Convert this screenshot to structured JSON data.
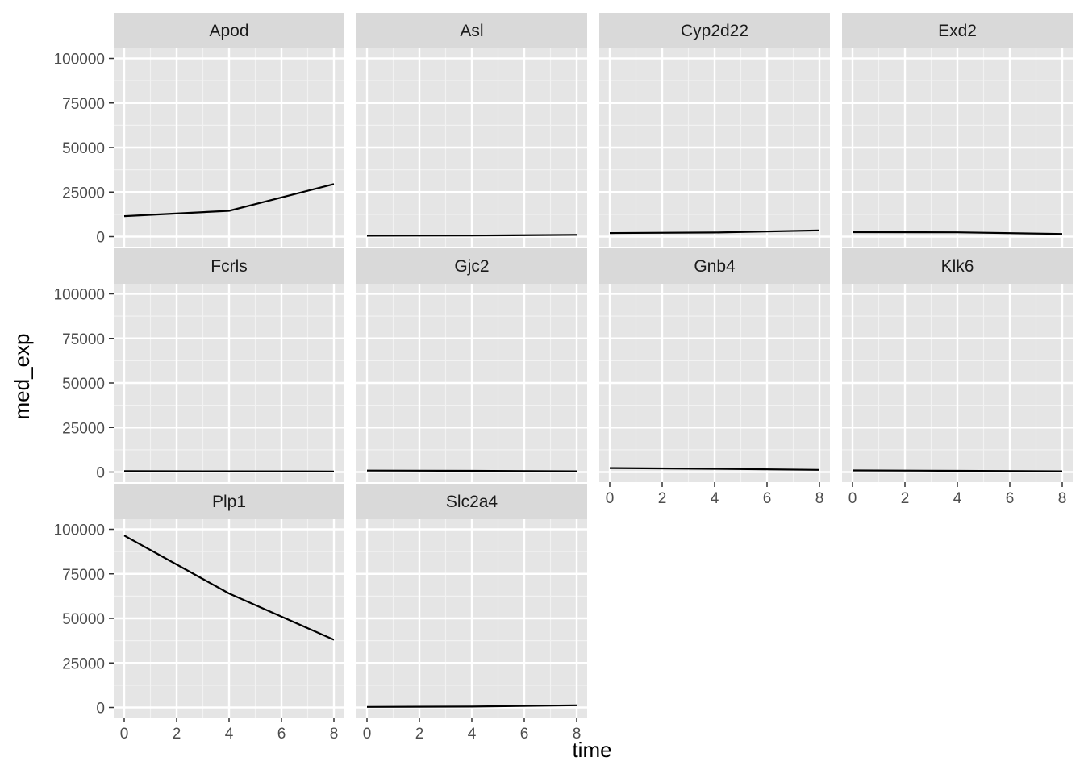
{
  "chart_data": {
    "type": "line",
    "facet_layout": "4 columns x 3 rows",
    "xlabel": "time",
    "ylabel": "med_exp",
    "xlim": [
      0,
      8
    ],
    "ylim": [
      0,
      100000
    ],
    "x_ticks": [
      "0",
      "2",
      "4",
      "6",
      "8"
    ],
    "y_ticks": [
      "0",
      "25000",
      "50000",
      "75000",
      "100000"
    ],
    "grid": true,
    "panel_background": "#e5e5e5",
    "strip_background": "#d9d9d9",
    "line_color": "#000000",
    "series": [
      {
        "name": "Apod",
        "x": [
          0,
          4,
          8
        ],
        "values": [
          11500,
          14500,
          29500
        ]
      },
      {
        "name": "Asl",
        "x": [
          0,
          4,
          8
        ],
        "values": [
          500,
          600,
          1000
        ]
      },
      {
        "name": "Cyp2d22",
        "x": [
          0,
          4,
          8
        ],
        "values": [
          2000,
          2300,
          3500
        ]
      },
      {
        "name": "Exd2",
        "x": [
          0,
          4,
          8
        ],
        "values": [
          2500,
          2400,
          1500
        ]
      },
      {
        "name": "Fcrls",
        "x": [
          0,
          4,
          8
        ],
        "values": [
          500,
          400,
          300
        ]
      },
      {
        "name": "Gjc2",
        "x": [
          0,
          4,
          8
        ],
        "values": [
          800,
          700,
          400
        ]
      },
      {
        "name": "Gnb4",
        "x": [
          0,
          4,
          8
        ],
        "values": [
          2200,
          1800,
          1200
        ]
      },
      {
        "name": "Klk6",
        "x": [
          0,
          4,
          8
        ],
        "values": [
          900,
          700,
          400
        ]
      },
      {
        "name": "Plp1",
        "x": [
          0,
          4,
          8
        ],
        "values": [
          96500,
          64000,
          38000
        ]
      },
      {
        "name": "Slc2a4",
        "x": [
          0,
          4,
          8
        ],
        "values": [
          300,
          500,
          1200
        ]
      }
    ]
  }
}
